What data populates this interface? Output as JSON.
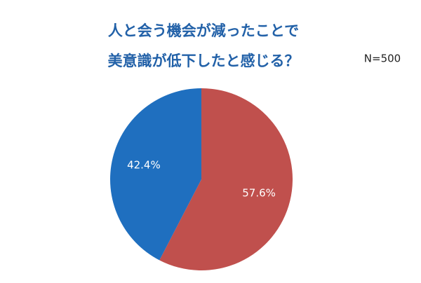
{
  "chart_data": {
    "type": "pie",
    "title": [
      "人と会う機会が減ったことで",
      "美意識が低下したと感じる？"
    ],
    "annotation": "N=500",
    "values": [
      57.6,
      42.4
    ],
    "value_labels": [
      "57.6%",
      "42.4%"
    ],
    "colors": [
      "#c0504d",
      "#1f6fbf"
    ]
  }
}
